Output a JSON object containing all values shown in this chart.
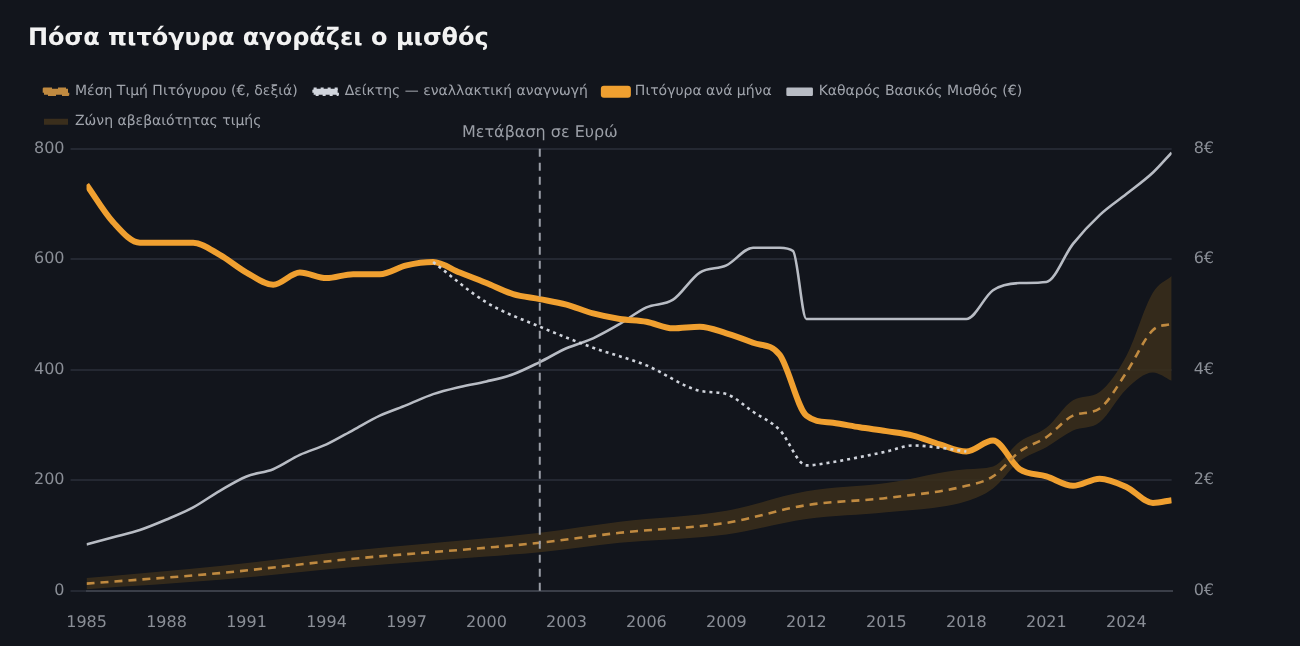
{
  "chart_data": {
    "type": "line",
    "title": "Πόσα πιτόγυρα αγοράζει ο μισθός",
    "xlim": [
      1985,
      2025.7
    ],
    "xticks": [
      1985,
      1988,
      1991,
      1994,
      1997,
      2000,
      2003,
      2006,
      2009,
      2012,
      2015,
      2018,
      2021,
      2024
    ],
    "ylim": [
      0,
      800
    ],
    "yticks": [
      0,
      200,
      400,
      600,
      800
    ],
    "y2lim": [
      0,
      8
    ],
    "y2ticks": [
      {
        "value": 0,
        "label": "0€"
      },
      {
        "value": 2,
        "label": "2€"
      },
      {
        "value": 4,
        "label": "4€"
      },
      {
        "value": 6,
        "label": "6€"
      },
      {
        "value": 8,
        "label": "8€"
      }
    ],
    "grid": "y",
    "legend": "top left",
    "marker": "none",
    "annotations": [
      "Ζώνη αβεβαιότητας τιμής"
    ],
    "ref_lines": [
      {
        "axis": "x",
        "value": 2002,
        "label": "Μετάβαση σε Ευρώ",
        "color": "#9a9ea6",
        "line_style": "dashed"
      }
    ],
    "series": [
      {
        "name": "Πιτόγυρα ανά μήνα",
        "color": "#f0a030",
        "line_style": "solid",
        "x": [
          1985,
          1986,
          1987,
          1988,
          1989,
          1990,
          1991,
          1992,
          1993,
          1994,
          1995,
          1996,
          1997,
          1998,
          1999,
          2000,
          2001,
          2002,
          2003,
          2004,
          2005,
          2006,
          2007,
          2008,
          2009,
          2010,
          2011,
          2012,
          2013,
          2014,
          2015,
          2016,
          2017,
          2018,
          2019,
          2020,
          2021,
          2022,
          2023,
          2024,
          2025,
          2025.7
        ],
        "values": [
          735,
          667,
          630,
          630,
          630,
          608,
          576,
          554,
          576,
          566,
          573,
          573,
          589,
          595,
          576,
          557,
          537,
          528,
          518,
          502,
          492,
          487,
          475,
          478,
          466,
          449,
          427,
          317,
          304,
          296,
          289,
          281,
          265,
          252,
          272,
          220,
          207,
          190,
          203,
          188,
          159,
          164
        ]
      },
      {
        "name": "Καθαρός Βασικός Μισθός (€)",
        "color": "#b8bcc4",
        "line_style": "solid",
        "x": [
          1985,
          1986,
          1987,
          1988,
          1989,
          1990,
          1991,
          1992,
          1993,
          1994,
          1995,
          1996,
          1997,
          1998,
          1999,
          2000,
          2001,
          2002,
          2003,
          2004,
          2005,
          2006,
          2007,
          2008,
          2009,
          2010,
          2011,
          2011.5,
          2012,
          2018,
          2019,
          2020,
          2021,
          2022,
          2023,
          2024,
          2025,
          2025.7
        ],
        "values": [
          84,
          97,
          110,
          129,
          151,
          181,
          207,
          220,
          246,
          265,
          291,
          317,
          336,
          356,
          369,
          379,
          392,
          414,
          439,
          457,
          483,
          513,
          527,
          576,
          589,
          621,
          621,
          615,
          492,
          492,
          544,
          557,
          559,
          628,
          680,
          718,
          757,
          793
        ]
      },
      {
        "name": "Μέση Τιμή Πιτόγυρου (€, δεξιά)",
        "color": "#c08a40",
        "line_style": "dashed",
        "axis": "y2",
        "x": [
          1985,
          1990,
          1995,
          2000,
          2002,
          2005,
          2009,
          2012,
          2015,
          2018,
          2019,
          2020,
          2021,
          2022,
          2023,
          2024,
          2025,
          2025.7
        ],
        "values": [
          0.13,
          0.32,
          0.58,
          0.78,
          0.87,
          1.05,
          1.23,
          1.55,
          1.68,
          1.9,
          2.07,
          2.52,
          2.78,
          3.17,
          3.3,
          3.95,
          4.72,
          4.83
        ],
        "lower": [
          0.03,
          0.2,
          0.43,
          0.62,
          0.7,
          0.87,
          1.02,
          1.3,
          1.42,
          1.62,
          1.85,
          2.35,
          2.6,
          2.9,
          3.05,
          3.65,
          3.95,
          3.8
        ],
        "upper": [
          0.23,
          0.45,
          0.73,
          0.95,
          1.05,
          1.25,
          1.45,
          1.8,
          1.95,
          2.2,
          2.25,
          2.7,
          2.95,
          3.45,
          3.6,
          4.25,
          5.4,
          5.7
        ]
      },
      {
        "name": "Δείκτης — εναλλακτική αναγνωγή",
        "color": "#d0d4dc",
        "line_style": "dotted",
        "x": [
          1998,
          2000,
          2002,
          2004,
          2006,
          2008,
          2009,
          2010,
          2011,
          2012,
          2013,
          2014,
          2015,
          2016,
          2017,
          2018
        ],
        "values": [
          595,
          522,
          478,
          440,
          408,
          362,
          356,
          324,
          291,
          227,
          233,
          242,
          252,
          263,
          259,
          252
        ]
      }
    ]
  }
}
